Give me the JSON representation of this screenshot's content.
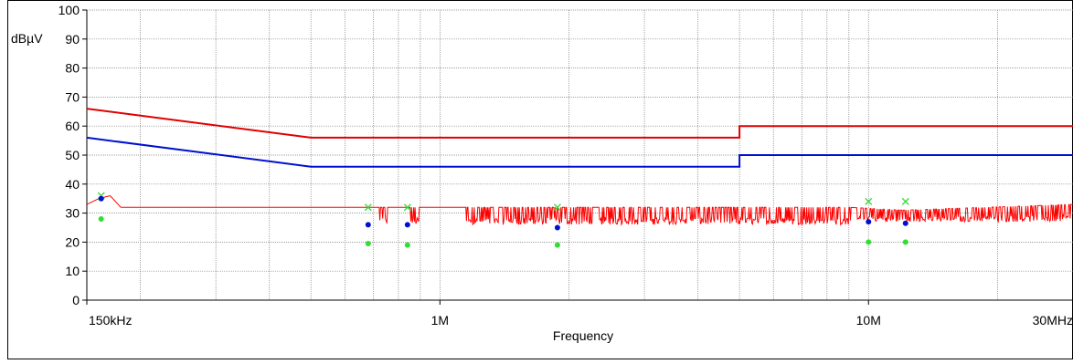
{
  "chart_data": {
    "type": "line",
    "ylabel_unit": "dBµV",
    "xlabel": "Frequency",
    "x_scale": "log",
    "xlim": [
      150000,
      30000000
    ],
    "ylim": [
      0,
      100
    ],
    "grid": true,
    "x_tick_labels": [
      {
        "value": 150000,
        "label": "150kHz"
      },
      {
        "value": 1000000,
        "label": "1M"
      },
      {
        "value": 10000000,
        "label": "10M"
      },
      {
        "value": 30000000,
        "label": "30MHz"
      }
    ],
    "y_ticks": [
      0,
      10,
      20,
      30,
      40,
      50,
      60,
      70,
      80,
      90,
      100
    ],
    "colors": {
      "quasi_peak_limit": "#e00000",
      "average_limit": "#0010d0",
      "scan_trace": "#ff0000",
      "qp_markers": "#40d840",
      "avg_markers": "#0010d0",
      "ave_result": "#30e030",
      "grid": "#808080",
      "axis": "#000000"
    },
    "series": [
      {
        "key": "quasi_peak_limit",
        "points": [
          [
            150000,
            66
          ],
          [
            500000,
            56
          ],
          [
            5000000,
            56
          ],
          [
            5000000,
            60
          ],
          [
            30000000,
            60
          ]
        ]
      },
      {
        "key": "average_limit",
        "points": [
          [
            150000,
            56
          ],
          [
            500000,
            46
          ],
          [
            5000000,
            46
          ],
          [
            5000000,
            50
          ],
          [
            30000000,
            50
          ]
        ]
      },
      {
        "key": "scan_trace",
        "baseline": [
          [
            150000,
            33
          ],
          [
            160000,
            35
          ],
          [
            170000,
            36
          ],
          [
            180000,
            32
          ],
          [
            500000,
            32
          ],
          [
            750000,
            32
          ],
          [
            1100000,
            32
          ],
          [
            9000000,
            32
          ],
          [
            12000000,
            31
          ],
          [
            30000000,
            33
          ]
        ],
        "dip_regions": [
          {
            "from": 720000,
            "to": 760000,
            "min": 26
          },
          {
            "from": 850000,
            "to": 900000,
            "min": 26
          },
          {
            "from": 1150000,
            "to": 9000000,
            "min": 26
          },
          {
            "from": 9000000,
            "to": 30000000,
            "min": 27
          }
        ]
      },
      {
        "key": "qp_markers",
        "points": [
          [
            162000,
            36
          ],
          [
            680000,
            32
          ],
          [
            840000,
            32
          ],
          [
            1880000,
            32
          ],
          [
            10000000,
            34
          ],
          [
            12200000,
            34
          ]
        ]
      },
      {
        "key": "avg_markers",
        "points": [
          [
            162000,
            35
          ],
          [
            680000,
            26
          ],
          [
            840000,
            26
          ],
          [
            1880000,
            25
          ],
          [
            10000000,
            27
          ],
          [
            12200000,
            26.5
          ]
        ]
      },
      {
        "key": "ave_result",
        "points": [
          [
            162000,
            28
          ],
          [
            680000,
            19.5
          ],
          [
            840000,
            19
          ],
          [
            1880000,
            19
          ],
          [
            10000000,
            20
          ],
          [
            12200000,
            20
          ]
        ]
      }
    ]
  }
}
